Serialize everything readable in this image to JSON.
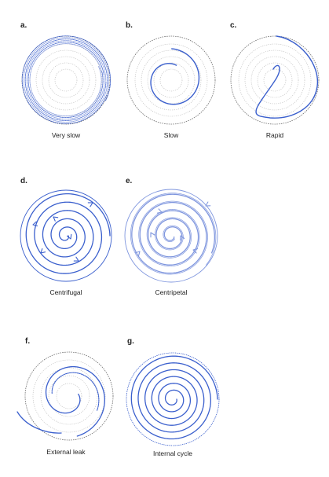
{
  "colors": {
    "spiral": "#3a5fcd",
    "spiral_light": "#7f96de",
    "guide": "#b7b7b7",
    "guide_dark": "#6f6f6f"
  },
  "panels": [
    {
      "id": "a",
      "letter": "a.",
      "caption": "Very slow"
    },
    {
      "id": "b",
      "letter": "b.",
      "caption": "Slow"
    },
    {
      "id": "c",
      "letter": "c.",
      "caption": "Rapid"
    },
    {
      "id": "d",
      "letter": "d.",
      "caption": "Centrifugal"
    },
    {
      "id": "e",
      "letter": "e.",
      "caption": "Centripetal"
    },
    {
      "id": "f",
      "letter": "f.",
      "caption": "External leak"
    },
    {
      "id": "g",
      "letter": "g.",
      "caption": "Internal cycle"
    }
  ]
}
